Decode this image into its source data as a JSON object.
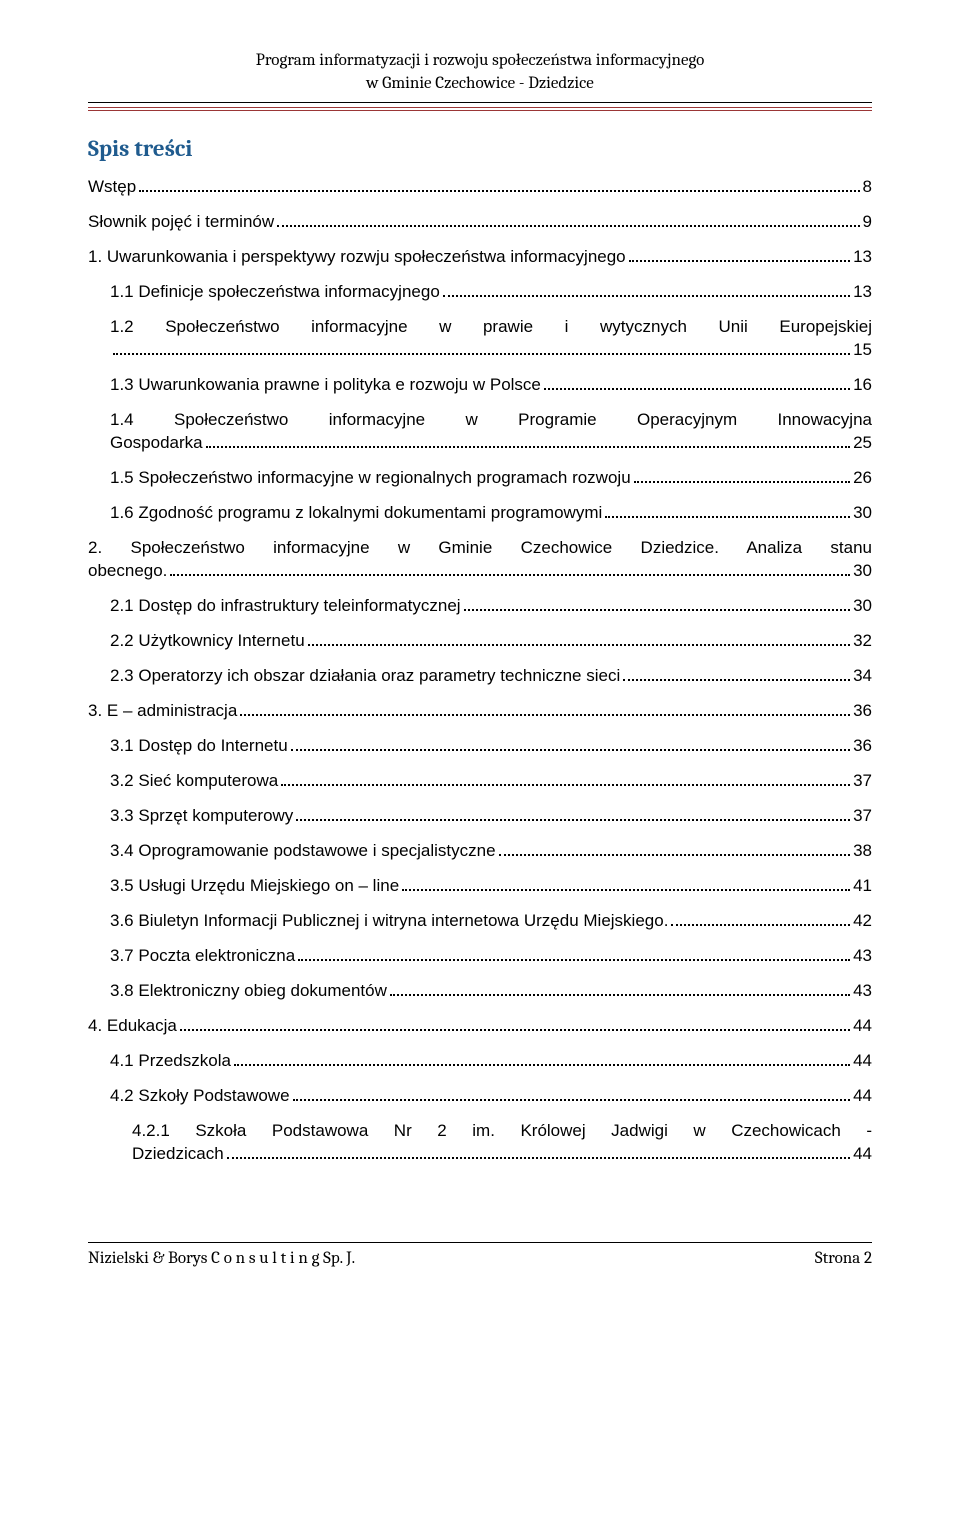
{
  "header": {
    "line1": "Program informatyzacji i rozwoju społeczeństwa informacyjnego",
    "line2": "w Gminie Czechowice - Dziedzice"
  },
  "toc_title": "Spis treści",
  "toc": [
    {
      "level": 1,
      "text": "Wstęp",
      "page": "8"
    },
    {
      "level": 1,
      "text": "Słownik pojęć i terminów",
      "page": "9"
    },
    {
      "level": 1,
      "text": "1. Uwarunkowania i perspektywy rozwju społeczeństwa informacyjnego",
      "page": "13"
    },
    {
      "level": 2,
      "text": "1.1 Definicje społeczeństwa informacyjnego",
      "page": "13"
    },
    {
      "level": 2,
      "multi": true,
      "text_first": "1.2 Społeczeństwo informacyjne w prawie i wytycznych Unii Europejskiej",
      "text_last": "",
      "page": "15"
    },
    {
      "level": 2,
      "text": "1.3 Uwarunkowania prawne i polityka e rozwoju w Polsce",
      "page": "16"
    },
    {
      "level": 2,
      "multi": true,
      "text_first": "1.4 Społeczeństwo informacyjne w Programie Operacyjnym Innowacyjna",
      "text_last": "Gospodarka",
      "page": "25"
    },
    {
      "level": 2,
      "text": "1.5 Społeczeństwo informacyjne w regionalnych programach rozwoju",
      "page": "26"
    },
    {
      "level": 2,
      "text": "1.6 Zgodność programu z lokalnymi dokumentami programowymi",
      "page": "30"
    },
    {
      "level": 1,
      "multi": true,
      "text_first": "2. Społeczeństwo informacyjne w Gminie Czechowice Dziedzice. Analiza stanu",
      "text_last": "obecnego.",
      "page": "30"
    },
    {
      "level": 2,
      "text": "2.1 Dostęp do infrastruktury teleinformatycznej",
      "page": "30"
    },
    {
      "level": 2,
      "text": "2.2 Użytkownicy Internetu",
      "page": "32"
    },
    {
      "level": 2,
      "text": "2.3 Operatorzy ich obszar działania oraz parametry techniczne sieci",
      "page": "34"
    },
    {
      "level": 1,
      "text": "3. E – administracja",
      "page": "36"
    },
    {
      "level": 2,
      "text": "3.1 Dostęp do Internetu",
      "page": "36"
    },
    {
      "level": 2,
      "text": "3.2 Sieć komputerowa",
      "page": "37"
    },
    {
      "level": 2,
      "text": "3.3 Sprzęt komputerowy",
      "page": "37"
    },
    {
      "level": 2,
      "text": "3.4 Oprogramowanie podstawowe i specjalistyczne",
      "page": "38"
    },
    {
      "level": 2,
      "text": "3.5 Usługi Urzędu Miejskiego on – line",
      "page": "41"
    },
    {
      "level": 2,
      "text": "3.6 Biuletyn Informacji Publicznej i witryna internetowa Urzędu Miejskiego.",
      "page": "42"
    },
    {
      "level": 2,
      "text": "3.7 Poczta elektroniczna",
      "page": "43"
    },
    {
      "level": 2,
      "text": "3.8 Elektroniczny obieg dokumentów",
      "page": "43"
    },
    {
      "level": 1,
      "text": "4. Edukacja",
      "page": "44"
    },
    {
      "level": 2,
      "text": "4.1 Przedszkola",
      "page": "44"
    },
    {
      "level": 2,
      "text": "4.2 Szkoły Podstawowe",
      "page": "44"
    },
    {
      "level": 3,
      "multi": true,
      "text_first": "4.2.1 Szkoła Podstawowa Nr 2 im. Królowej Jadwigi w Czechowicach -",
      "text_last": "Dziedzicach",
      "page": "44"
    }
  ],
  "footer": {
    "left_prefix": "Nizielski & Borys C",
    "left_spaced": " o n s u l t i n g ",
    "left_suffix": "Sp. J.",
    "right": "Strona 2"
  }
}
